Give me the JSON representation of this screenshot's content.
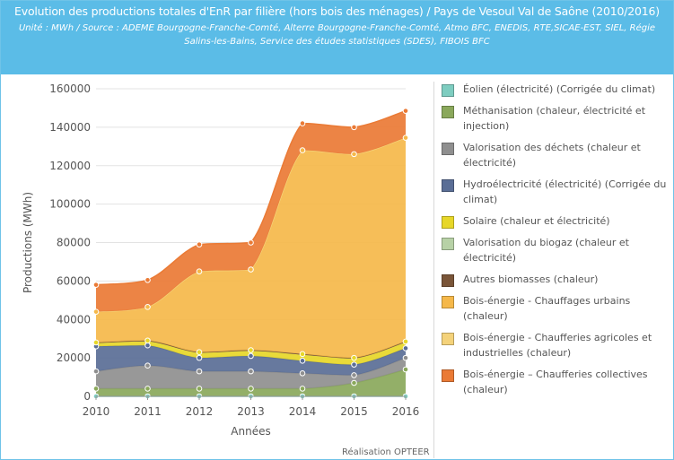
{
  "header": {
    "title": "Evolution des productions totales d'EnR par filière (hors bois des ménages) / Pays de Vesoul Val de Saône (2010/2016)",
    "subtitle": "Unité : MWh / Source : ADEME Bourgogne-Franche-Comté, Alterre Bourgogne-Franche-Comté, Atmo BFC, ENEDIS, RTE,SICAE-EST, SIEL, Régie Salins-les-Bains, Service des études statistiques (SDES), FIBOIS BFC"
  },
  "credit": "Réalisation OPTEER",
  "chart_data": {
    "type": "area",
    "stacked": true,
    "title": "Evolution des productions totales d'EnR par filière (hors bois des ménages) / Pays de Vesoul Val de Saône (2010/2016)",
    "xlabel": "Années",
    "ylabel": "Productions (MWh)",
    "x": [
      "2010",
      "2011",
      "2012",
      "2013",
      "2014",
      "2015",
      "2016"
    ],
    "ylim": [
      0,
      160000
    ],
    "yticks": [
      0,
      20000,
      40000,
      60000,
      80000,
      100000,
      120000,
      140000,
      160000
    ],
    "ytick_labels": [
      "0",
      "20000",
      "40000",
      "60000",
      "80000",
      "100000",
      "120000",
      "140000",
      "160000"
    ],
    "grid": true,
    "legend_position": "right",
    "series": [
      {
        "name": "Éolien (électricité) (Corrigée du climat)",
        "color": "#7ecdc0",
        "values": [
          0,
          0,
          0,
          0,
          0,
          0,
          0
        ]
      },
      {
        "name": "Méthanisation (chaleur, électricité et injection)",
        "color": "#8aa85b",
        "values": [
          4000,
          4000,
          4000,
          4000,
          4000,
          7000,
          14000
        ]
      },
      {
        "name": "Valorisation des déchets (chaleur et électricité)",
        "color": "#8f8f8f",
        "values": [
          9000,
          12000,
          9000,
          9000,
          8000,
          4000,
          6000
        ]
      },
      {
        "name": "Hydroélectricité (électricité) (Corrigée du climat)",
        "color": "#5a6e96",
        "values": [
          13000,
          10500,
          7000,
          8000,
          6500,
          5500,
          5000
        ]
      },
      {
        "name": "Solaire (chaleur et électricité)",
        "color": "#e7d728",
        "values": [
          2000,
          2500,
          3000,
          3000,
          3500,
          3500,
          3500
        ]
      },
      {
        "name": "Valorisation du biogaz (chaleur et électricité)",
        "color": "#b7d1a6",
        "values": [
          0,
          0,
          0,
          0,
          0,
          0,
          0
        ]
      },
      {
        "name": "Autres biomasses (chaleur)",
        "color": "#7a5538",
        "values": [
          0,
          0,
          0,
          0,
          0,
          0,
          0
        ]
      },
      {
        "name": "Bois-énergie - Chauffages urbains (chaleur)",
        "color": "#f5b84a",
        "values": [
          16000,
          17500,
          42000,
          42000,
          106000,
          106000,
          106000
        ]
      },
      {
        "name": "Bois-énergie - Chaufferies agricoles et industrielles (chaleur)",
        "color": "#f4d27a",
        "values": [
          0,
          0,
          0,
          0,
          0,
          0,
          0
        ]
      },
      {
        "name": "Bois-énergie – Chaufferies collectives (chaleur)",
        "color": "#ea7a35",
        "values": [
          14000,
          14000,
          14000,
          14000,
          14000,
          14000,
          14000
        ]
      }
    ]
  }
}
